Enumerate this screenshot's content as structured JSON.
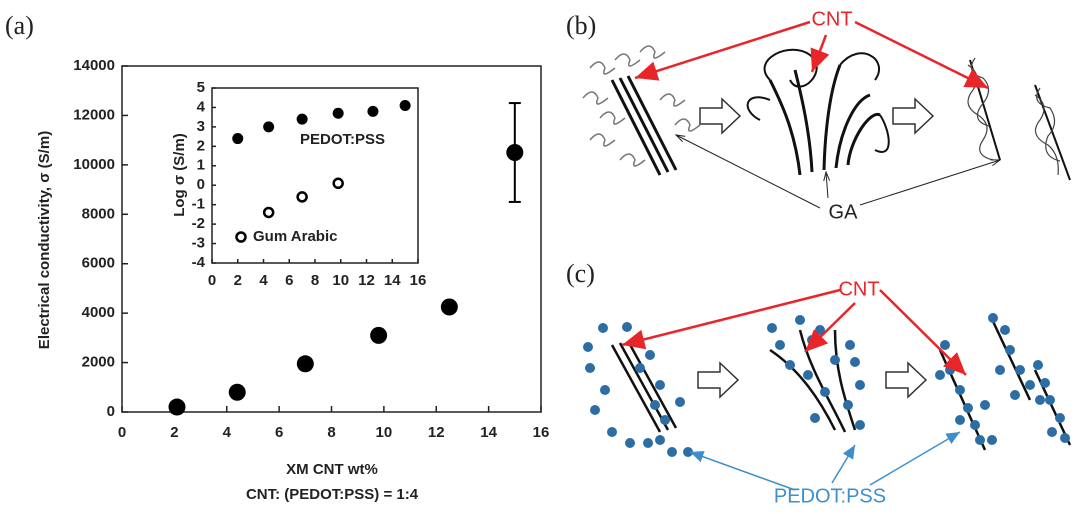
{
  "panel_labels": [
    "(a)",
    "(b)",
    "(c)"
  ],
  "chart_data": [
    {
      "type": "scatter",
      "ylabel": "Electrical conductivity, σ (S/m)",
      "xlabel": "XM CNT wt%",
      "xlabel_note": "CNT: (PEDOT:PSS) = 1:4",
      "x": [
        2.1,
        4.4,
        7,
        9.8,
        12.5,
        15
      ],
      "values": [
        200,
        800,
        1950,
        3100,
        4250,
        10500
      ],
      "errors": [
        null,
        null,
        null,
        null,
        null,
        2000
      ],
      "color": "#000000",
      "xlim": [
        0,
        16
      ],
      "xticks": [
        0,
        2,
        4,
        6,
        8,
        10,
        12,
        14,
        16
      ],
      "ylim": [
        0,
        14000
      ],
      "yticks": [
        0,
        2000,
        4000,
        6000,
        8000,
        10000,
        12000,
        14000
      ]
    },
    {
      "type": "scatter",
      "ylabel": "Log σ (S/m)",
      "series": [
        {
          "name": "PEDOT:PSS",
          "color": "#000000",
          "marker": "filled",
          "x": [
            2,
            4.4,
            7,
            9.8,
            12.5,
            15
          ],
          "values": [
            2.4,
            3.0,
            3.4,
            3.7,
            3.8,
            4.1
          ]
        },
        {
          "name": "Gum Arabic",
          "color": "#000000",
          "marker": "open",
          "x": [
            4.4,
            7,
            9.8
          ],
          "values": [
            -1.4,
            -0.6,
            0.1
          ]
        }
      ],
      "xlim": [
        0,
        16
      ],
      "xticks": [
        0,
        2,
        4,
        6,
        8,
        10,
        12,
        14,
        16
      ],
      "ylim": [
        -4,
        5
      ],
      "yticks": [
        -4,
        -3,
        -2,
        -1,
        0,
        1,
        2,
        3,
        4,
        5
      ]
    }
  ],
  "diagram_b": {
    "cnt_label": "CNT",
    "ga_label": "GA"
  },
  "diagram_c": {
    "cnt_label": "CNT",
    "pedot_label": "PEDOT:PSS"
  }
}
